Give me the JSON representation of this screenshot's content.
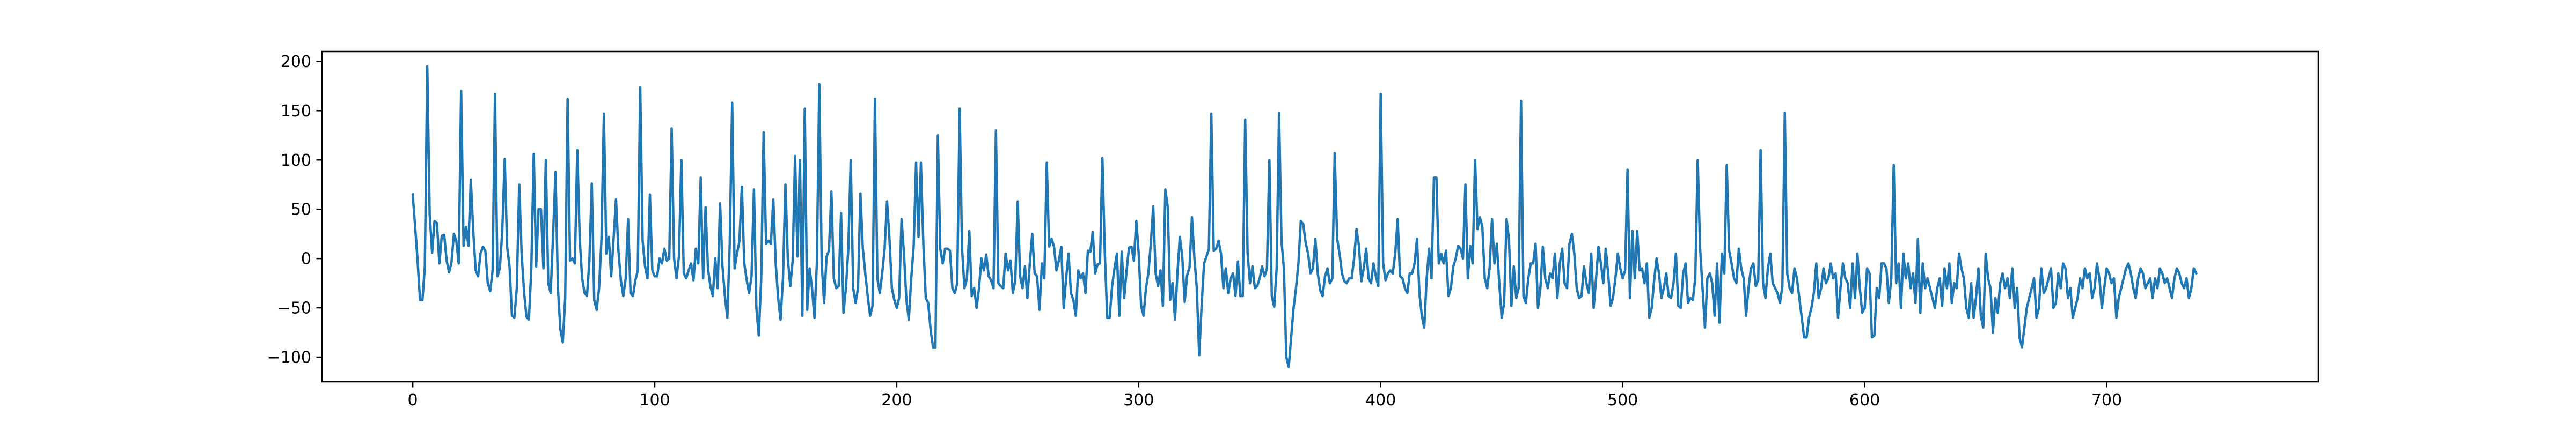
{
  "chart_data": {
    "type": "line",
    "title": "",
    "xlabel": "",
    "ylabel": "",
    "xlim": [
      -37.5,
      787.5
    ],
    "ylim": [
      -125,
      210
    ],
    "grid": false,
    "legend": "none",
    "x_ticks": [
      0,
      100,
      200,
      300,
      400,
      500,
      600,
      700
    ],
    "y_ticks": [
      -100,
      -50,
      0,
      50,
      100,
      150,
      200
    ],
    "series": [
      {
        "color": "#1f77b4",
        "x_start": 0,
        "x_step": 1,
        "values": [
          65,
          32,
          -2,
          -42,
          -42,
          -8,
          195,
          45,
          6,
          38,
          36,
          -5,
          23,
          24,
          -2,
          -14,
          -4,
          25,
          18,
          -5,
          170,
          13,
          32,
          13,
          80,
          28,
          -12,
          -18,
          5,
          12,
          8,
          -25,
          -33,
          -12,
          167,
          -18,
          -10,
          28,
          101,
          12,
          -8,
          -58,
          -60,
          -30,
          75,
          5,
          -34,
          -59,
          -62,
          -10,
          106,
          -8,
          50,
          50,
          -10,
          100,
          -25,
          -35,
          24,
          88,
          -30,
          -72,
          -85,
          -40,
          162,
          -2,
          0,
          -5,
          110,
          20,
          -20,
          -35,
          -38,
          -2,
          76,
          -42,
          -52,
          -30,
          20,
          147,
          5,
          22,
          -18,
          20,
          60,
          8,
          -22,
          -38,
          -20,
          40,
          -35,
          -38,
          -22,
          -12,
          174,
          18,
          -8,
          -20,
          65,
          -12,
          -18,
          -18,
          0,
          -5,
          10,
          -2,
          0,
          132,
          0,
          -20,
          2,
          100,
          -15,
          -20,
          -12,
          -5,
          -22,
          10,
          -5,
          82,
          -20,
          52,
          -10,
          -28,
          -38,
          0,
          -30,
          56,
          -8,
          -38,
          -60,
          15,
          158,
          -10,
          5,
          18,
          73,
          -5,
          -22,
          -35,
          -18,
          70,
          -50,
          -78,
          -20,
          128,
          15,
          18,
          15,
          60,
          -5,
          -40,
          -62,
          -20,
          75,
          0,
          -28,
          -2,
          104,
          2,
          100,
          -58,
          152,
          -52,
          -10,
          -30,
          -60,
          -5,
          177,
          -5,
          -45,
          2,
          8,
          68,
          -20,
          -30,
          -28,
          46,
          -55,
          -30,
          10,
          100,
          -30,
          -45,
          -30,
          66,
          10,
          -15,
          -38,
          -58,
          -48,
          162,
          -20,
          -35,
          -15,
          10,
          58,
          20,
          -30,
          -42,
          -50,
          -40,
          40,
          5,
          -42,
          -62,
          -20,
          12,
          97,
          22,
          97,
          15,
          -40,
          -45,
          -72,
          -90,
          -90,
          125,
          10,
          -5,
          10,
          10,
          8,
          -30,
          -35,
          -25,
          152,
          10,
          -30,
          -20,
          28,
          -38,
          -30,
          -50,
          -30,
          0,
          -12,
          4,
          -18,
          -22,
          -30,
          130,
          -25,
          -28,
          -30,
          5,
          -12,
          -2,
          -35,
          -22,
          58,
          -18,
          -30,
          -8,
          -40,
          -5,
          25,
          -15,
          -18,
          -52,
          -5,
          -20,
          97,
          12,
          20,
          12,
          -12,
          -2,
          12,
          -50,
          -20,
          5,
          -35,
          -42,
          -58,
          -12,
          -20,
          -15,
          -35,
          8,
          7,
          27,
          -15,
          -6,
          -5,
          102,
          5,
          -60,
          -60,
          -28,
          -10,
          5,
          -58,
          7,
          -40,
          -12,
          11,
          12,
          -2,
          38,
          5,
          -48,
          -58,
          -30,
          -15,
          15,
          53,
          -15,
          -28,
          -12,
          -48,
          70,
          52,
          -42,
          -25,
          -62,
          -15,
          22,
          2,
          -44,
          -17,
          -9,
          42,
          1,
          -30,
          -98,
          -48,
          -5,
          2,
          10,
          147,
          8,
          10,
          18,
          5,
          -30,
          -10,
          -35,
          -20,
          -15,
          -38,
          -3,
          -38,
          -38,
          141,
          5,
          -25,
          -8,
          -30,
          -28,
          -20,
          -8,
          -18,
          -10,
          100,
          -38,
          -49,
          -10,
          148,
          18,
          -10,
          -100,
          -110,
          -80,
          -50,
          -30,
          -5,
          38,
          35,
          16,
          5,
          -15,
          -10,
          20,
          -15,
          -32,
          -38,
          -18,
          -10,
          -25,
          -20,
          107,
          20,
          5,
          -15,
          -23,
          -25,
          -20,
          -20,
          0,
          30,
          13,
          -23,
          -10,
          10,
          -20,
          -25,
          -5,
          -18,
          -28,
          167,
          -5,
          -22,
          -15,
          -12,
          -15,
          5,
          40,
          -18,
          -20,
          -30,
          -35,
          -15,
          -15,
          -5,
          20,
          -35,
          -58,
          -70,
          -20,
          10,
          -20,
          82,
          82,
          -5,
          5,
          -5,
          8,
          -38,
          -30,
          -8,
          0,
          13,
          10,
          0,
          75,
          -20,
          13,
          -5,
          100,
          30,
          42,
          32,
          -20,
          -30,
          -10,
          40,
          -5,
          15,
          -25,
          -60,
          -45,
          40,
          20,
          -48,
          -8,
          -40,
          -30,
          160,
          -38,
          -45,
          -20,
          -5,
          -5,
          15,
          -50,
          -30,
          12,
          -20,
          -30,
          -15,
          -20,
          5,
          -40,
          -5,
          10,
          -25,
          -30,
          15,
          25,
          5,
          -30,
          -40,
          -38,
          -8,
          -25,
          -35,
          5,
          -50,
          -20,
          12,
          -5,
          -25,
          10,
          -15,
          -48,
          -40,
          -20,
          5,
          -10,
          -20,
          -12,
          90,
          -40,
          28,
          -20,
          28,
          -12,
          -10,
          -25,
          -5,
          -60,
          -50,
          -22,
          0,
          -15,
          -40,
          -30,
          -15,
          -38,
          -40,
          -25,
          5,
          -48,
          -50,
          -15,
          -5,
          -45,
          -40,
          -42,
          -20,
          100,
          10,
          -30,
          -70,
          -20,
          -15,
          -25,
          -58,
          -5,
          -65,
          5,
          -15,
          95,
          8,
          -5,
          -20,
          -25,
          10,
          -10,
          -20,
          -58,
          -30,
          -10,
          -5,
          -28,
          -22,
          110,
          -25,
          -40,
          -10,
          5,
          -25,
          -30,
          -35,
          -45,
          -28,
          148,
          -15,
          -30,
          -35,
          -10,
          -20,
          -40,
          -60,
          -80,
          -80,
          -60,
          -50,
          -35,
          -5,
          -40,
          -30,
          -10,
          -25,
          -20,
          -5,
          -20,
          -15,
          -60,
          -30,
          -5,
          -20,
          -25,
          -50,
          -5,
          -40,
          5,
          -30,
          -55,
          -50,
          -10,
          -15,
          -80,
          -78,
          -30,
          -40,
          -5,
          -5,
          -10,
          -45,
          -20,
          95,
          -25,
          -5,
          -50,
          5,
          -20,
          -5,
          -30,
          -15,
          -45,
          20,
          -55,
          -5,
          -30,
          -20,
          -30,
          -40,
          -50,
          -30,
          -20,
          -48,
          -10,
          -30,
          -5,
          -45,
          -25,
          -30,
          5,
          -10,
          -20,
          -50,
          -60,
          -25,
          -60,
          -40,
          -10,
          -58,
          -70,
          5,
          -20,
          -30,
          -75,
          -40,
          -55,
          -25,
          -15,
          -30,
          -20,
          -40,
          -10,
          -50,
          -30,
          -80,
          -90,
          -70,
          -50,
          -40,
          -30,
          -20,
          -60,
          -50,
          -10,
          -35,
          -30,
          -20,
          -10,
          -50,
          -45,
          -15,
          -30,
          -5,
          -10,
          -40,
          -30,
          -60,
          -50,
          -40,
          -20,
          -30,
          -10,
          -20,
          -15,
          -40,
          -30,
          -5,
          -20,
          -50,
          -30,
          -10,
          -15,
          -25,
          -20,
          -60,
          -40,
          -30,
          -20,
          -10,
          -5,
          -15,
          -30,
          -40,
          -20,
          -10,
          -15,
          -30,
          -25,
          -20,
          -40,
          -20,
          -30,
          -10,
          -15,
          -25,
          -20,
          -30,
          -40,
          -20,
          -10,
          -15,
          -25,
          -30,
          -20,
          -40,
          -30,
          -10,
          -15
        ]
      }
    ]
  }
}
